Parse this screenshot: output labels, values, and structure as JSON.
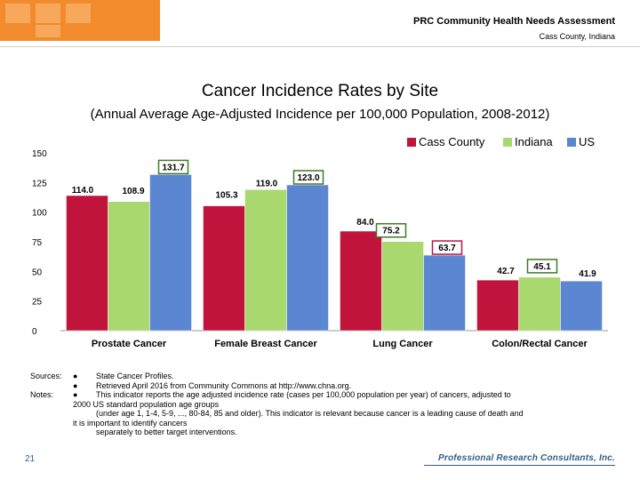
{
  "header": {
    "title": "PRC Community Health Needs Assessment",
    "subtitle": "Cass County, Indiana"
  },
  "colors": {
    "cass": "#c0143c",
    "indiana": "#a8d86e",
    "us": "#5b86d2",
    "cass_label_border": "#c0143c",
    "green_label_border": "#3f7a24",
    "brand_orange": "#f28a2e"
  },
  "chart_data": {
    "type": "bar",
    "title": "Cancer Incidence Rates by Site",
    "subtitle": "(Annual Average Age-Adjusted Incidence per 100,000 Population, 2008-2012)",
    "categories": [
      "Prostate Cancer",
      "Female Breast Cancer",
      "Lung Cancer",
      "Colon/Rectal Cancer"
    ],
    "series": [
      {
        "name": "Cass County",
        "values": [
          114.0,
          105.3,
          84.0,
          42.7
        ],
        "labels": [
          "114.0",
          "105.3",
          "84.0",
          "42.7"
        ]
      },
      {
        "name": "Indiana",
        "values": [
          108.9,
          119.0,
          75.2,
          45.1
        ],
        "labels": [
          "108.9",
          "119.0",
          "75.2",
          "45.1"
        ]
      },
      {
        "name": "US",
        "values": [
          131.7,
          123.0,
          63.7,
          41.9
        ],
        "labels": [
          "131.7",
          "123.0",
          "63.7",
          "41.9"
        ]
      }
    ],
    "ylim": [
      0,
      150
    ],
    "yticks": [
      0,
      25,
      50,
      75,
      100,
      125,
      150
    ],
    "legend_position": "top-right",
    "grid": false
  },
  "notes": {
    "sources_label": "Sources:",
    "notes_label": "Notes:",
    "bullet": "●",
    "source_1": "State Cancer Profiles.",
    "source_2": "Retrieved April 2016 from Community Commons at http://www.chna.org.",
    "note_1": "This indicator reports the age adjusted incidence rate (cases per 100,000 population per year) of cancers, adjusted to",
    "note_2": "2000 US standard population age groups",
    "note_3": "(under age 1, 1-4, 5-9, ..., 80-84, 85 and older). This indicator is relevant because cancer is a leading cause of death and",
    "note_4": "it is important to identify cancers",
    "note_5": "separately to better target interventions."
  },
  "footer": {
    "page_number": "21",
    "brand": "Professional Research Consultants, Inc."
  }
}
